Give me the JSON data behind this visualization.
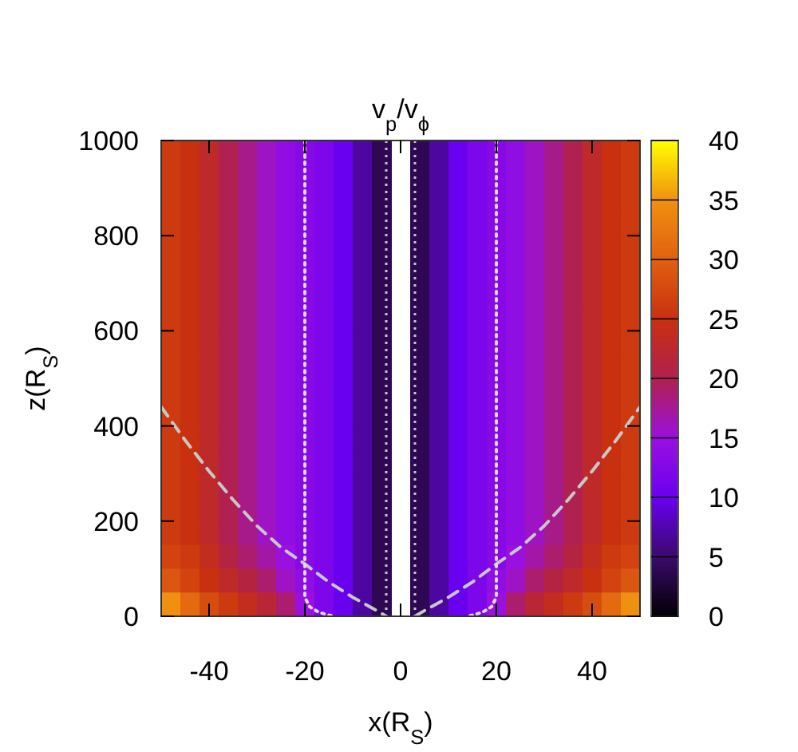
{
  "chart_data": {
    "type": "heatmap",
    "title": "v$_{p}$/v$_{ϕ}$",
    "xlabel": "x(R$_{S}$)",
    "ylabel": "z(R$_{S}$)",
    "xlim": [
      -50,
      50
    ],
    "xticks": [
      -40,
      -20,
      0,
      20,
      40
    ],
    "ylim": [
      0,
      1000
    ],
    "yticks": [
      0,
      200,
      400,
      600,
      800,
      1000
    ],
    "clim": [
      0,
      40
    ],
    "cticks": [
      0,
      5,
      10,
      15,
      20,
      25,
      30,
      35,
      40
    ],
    "x": [
      -48,
      -44,
      -40,
      -36,
      -32,
      -28,
      -24,
      -20,
      -16,
      -12,
      -8,
      -4,
      4,
      8,
      12,
      16,
      20,
      24,
      28,
      32,
      36,
      40,
      44,
      48
    ],
    "y": [
      975,
      925,
      875,
      825,
      775,
      725,
      675,
      625,
      575,
      525,
      475,
      425,
      375,
      325,
      275,
      225,
      175,
      125,
      75,
      25
    ],
    "cells": [
      [
        26,
        25,
        23,
        20,
        18,
        16,
        14,
        13,
        12,
        10,
        7,
        4,
        4,
        7,
        10,
        12,
        13,
        14,
        16,
        18,
        20,
        23,
        25,
        26
      ],
      [
        26,
        25,
        23,
        20,
        18,
        16,
        14,
        13,
        12,
        10,
        7,
        4,
        4,
        7,
        10,
        12,
        13,
        14,
        16,
        18,
        20,
        23,
        25,
        26
      ],
      [
        26,
        25,
        23,
        20,
        18,
        16,
        14,
        13,
        12,
        10,
        7,
        4,
        4,
        7,
        10,
        12,
        13,
        14,
        16,
        18,
        20,
        23,
        25,
        26
      ],
      [
        26,
        25,
        23,
        20,
        18,
        16,
        14,
        13,
        12,
        10,
        7,
        4,
        4,
        7,
        10,
        12,
        13,
        14,
        16,
        18,
        20,
        23,
        25,
        26
      ],
      [
        26,
        25,
        23,
        20,
        18,
        16,
        14,
        13,
        12,
        10,
        7,
        4,
        4,
        7,
        10,
        12,
        13,
        14,
        16,
        18,
        20,
        23,
        25,
        26
      ],
      [
        26,
        25,
        23,
        20,
        18,
        16,
        14,
        13,
        12,
        10,
        7,
        4,
        4,
        7,
        10,
        12,
        13,
        14,
        16,
        18,
        20,
        23,
        25,
        26
      ],
      [
        26,
        25,
        23,
        20,
        18,
        16,
        14,
        13,
        12,
        10,
        7,
        4,
        4,
        7,
        10,
        12,
        13,
        14,
        16,
        18,
        20,
        23,
        25,
        26
      ],
      [
        26,
        25,
        23,
        20,
        18,
        16,
        14,
        13,
        12,
        10,
        7,
        4,
        4,
        7,
        10,
        12,
        13,
        14,
        16,
        18,
        20,
        23,
        25,
        26
      ],
      [
        26,
        25,
        23,
        20,
        18,
        16,
        14,
        13,
        12,
        10,
        7,
        4,
        4,
        7,
        10,
        12,
        13,
        14,
        16,
        18,
        20,
        23,
        25,
        26
      ],
      [
        26,
        25,
        23,
        20,
        18,
        16,
        14,
        13,
        12,
        10,
        7,
        4,
        4,
        7,
        10,
        12,
        13,
        14,
        16,
        18,
        20,
        23,
        25,
        26
      ],
      [
        26,
        25,
        23,
        20,
        18,
        16,
        14,
        13,
        12,
        10,
        7,
        4,
        4,
        7,
        10,
        12,
        13,
        14,
        16,
        18,
        20,
        23,
        25,
        26
      ],
      [
        26,
        25,
        23,
        20,
        18,
        16,
        14,
        13,
        12,
        10,
        7,
        4,
        4,
        7,
        10,
        12,
        13,
        14,
        16,
        18,
        20,
        23,
        25,
        26
      ],
      [
        26,
        25,
        23,
        20,
        18,
        16,
        14,
        13,
        12,
        10,
        7,
        4,
        4,
        7,
        10,
        12,
        13,
        14,
        16,
        18,
        20,
        23,
        25,
        26
      ],
      [
        26,
        25,
        23,
        20,
        18,
        16,
        14,
        13,
        12,
        10,
        7,
        4,
        4,
        7,
        10,
        12,
        13,
        14,
        16,
        18,
        20,
        23,
        25,
        26
      ],
      [
        26,
        25,
        23,
        20,
        18,
        16,
        14,
        13,
        12,
        10,
        7,
        4,
        4,
        7,
        10,
        12,
        13,
        14,
        16,
        18,
        20,
        23,
        25,
        26
      ],
      [
        26,
        25,
        23,
        20,
        18,
        16,
        14,
        13,
        12,
        10,
        7,
        4,
        4,
        7,
        10,
        12,
        13,
        14,
        16,
        18,
        20,
        23,
        25,
        26
      ],
      [
        26,
        25,
        23,
        20,
        18,
        16,
        14,
        13,
        12,
        10,
        7,
        4,
        4,
        7,
        10,
        12,
        13,
        14,
        16,
        18,
        20,
        23,
        25,
        26
      ],
      [
        27,
        26,
        24,
        21,
        19,
        17,
        15,
        13,
        12,
        10,
        7,
        4,
        4,
        7,
        10,
        12,
        13,
        15,
        17,
        19,
        21,
        24,
        26,
        27
      ],
      [
        29,
        27,
        25,
        23,
        21,
        19,
        16,
        14,
        12,
        10,
        7,
        4,
        4,
        7,
        10,
        12,
        14,
        16,
        19,
        21,
        23,
        25,
        27,
        29
      ],
      [
        35,
        31,
        28,
        26,
        24,
        22,
        19,
        15,
        12,
        10,
        7,
        4,
        4,
        7,
        10,
        12,
        15,
        19,
        22,
        24,
        26,
        28,
        31,
        35
      ]
    ],
    "ref_lines": [
      {
        "axis": "x",
        "value": -3,
        "color": "#c8c8c8",
        "line_style": "dotted"
      },
      {
        "axis": "x",
        "value": 3,
        "color": "#c8c8c8",
        "line_style": "dotted"
      }
    ],
    "series": [
      {
        "type": "line",
        "color": "#c8c8c8",
        "line_style": "dashed",
        "x": [
          -50,
          -45,
          -40,
          -35,
          -30,
          -25,
          -20,
          -15,
          -10,
          -5,
          -3
        ],
        "values": [
          440,
          370,
          305,
          245,
          190,
          145,
          110,
          72,
          40,
          12,
          0
        ]
      },
      {
        "type": "line",
        "color": "#c8c8c8",
        "line_style": "dashed",
        "x": [
          3,
          5,
          10,
          15,
          20,
          25,
          30,
          35,
          40,
          45,
          50
        ],
        "values": [
          0,
          12,
          40,
          72,
          110,
          145,
          190,
          245,
          305,
          370,
          440
        ]
      },
      {
        "type": "line",
        "color": "#dcdcdc",
        "line_style": "dotted",
        "x": [
          -20,
          -20,
          -20,
          -19,
          -17,
          -14
        ],
        "values": [
          1000,
          500,
          40,
          20,
          8,
          0
        ]
      },
      {
        "type": "line",
        "color": "#dcdcdc",
        "line_style": "dotted",
        "x": [
          20,
          20,
          20,
          19,
          17,
          14
        ],
        "values": [
          1000,
          500,
          40,
          20,
          8,
          0
        ]
      }
    ]
  }
}
